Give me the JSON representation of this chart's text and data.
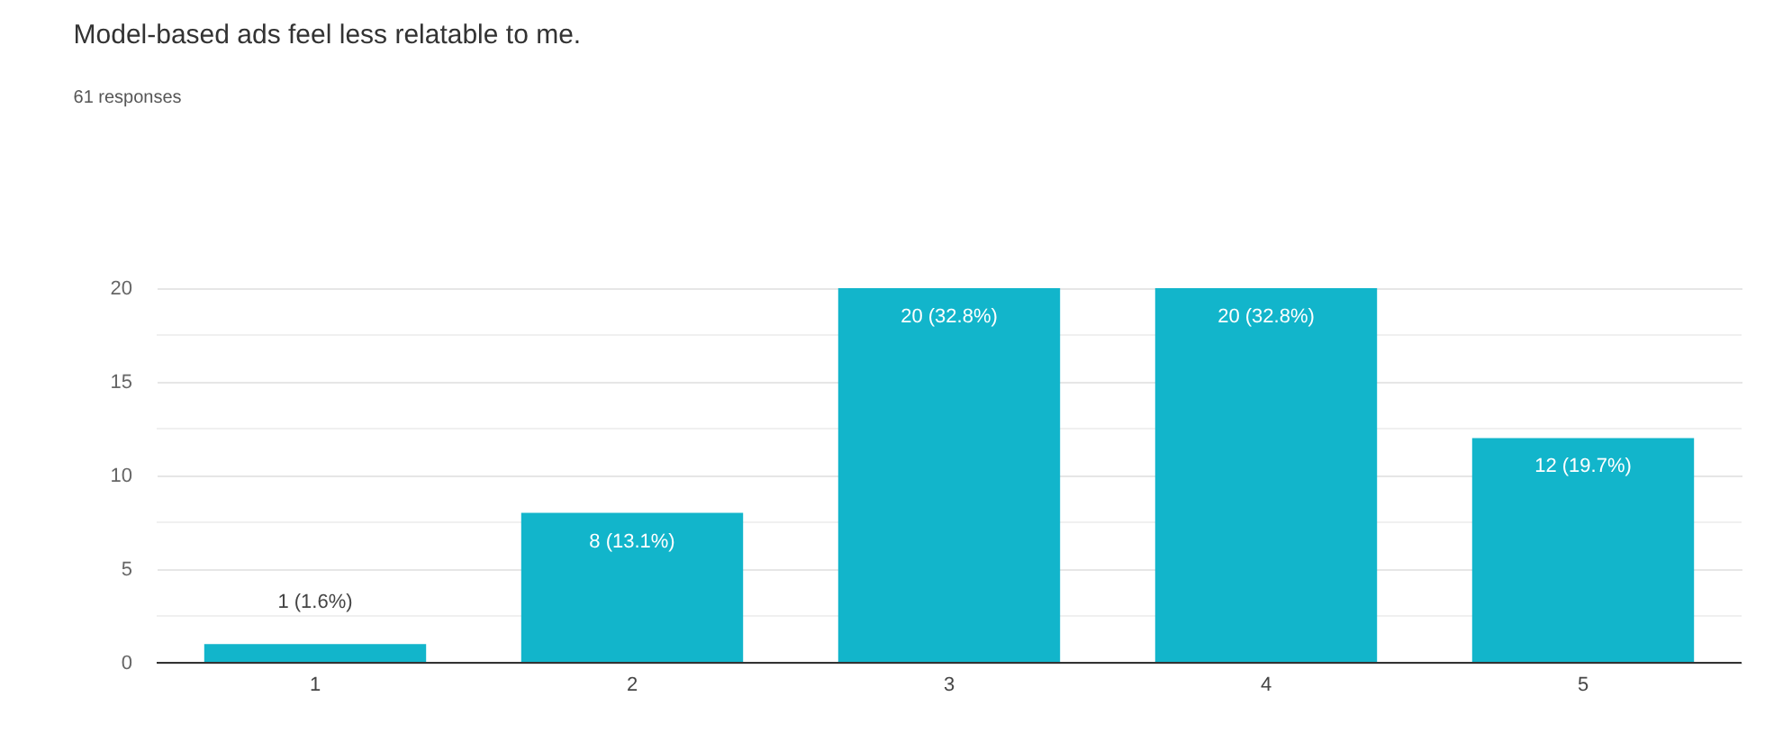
{
  "chart_data": {
    "type": "bar",
    "title": "Model-based ads feel less relatable to me.",
    "subtitle": "61 responses",
    "categories": [
      "1",
      "2",
      "3",
      "4",
      "5"
    ],
    "values": [
      1,
      8,
      20,
      20,
      12
    ],
    "value_labels": [
      "1 (1.6%)",
      "8 (13.1%)",
      "20 (32.8%)",
      "20 (32.8%)",
      "12 (19.7%)"
    ],
    "color": "#12b5cb",
    "ylim": [
      0,
      20
    ],
    "yticks": [
      0,
      {
        "value": 2.5,
        "label": null
      },
      5,
      {
        "value": 7.5,
        "label": null
      },
      10,
      {
        "value": 12.5,
        "label": null
      },
      15,
      {
        "value": 17.5,
        "label": null
      },
      20
    ],
    "grid": "y"
  }
}
